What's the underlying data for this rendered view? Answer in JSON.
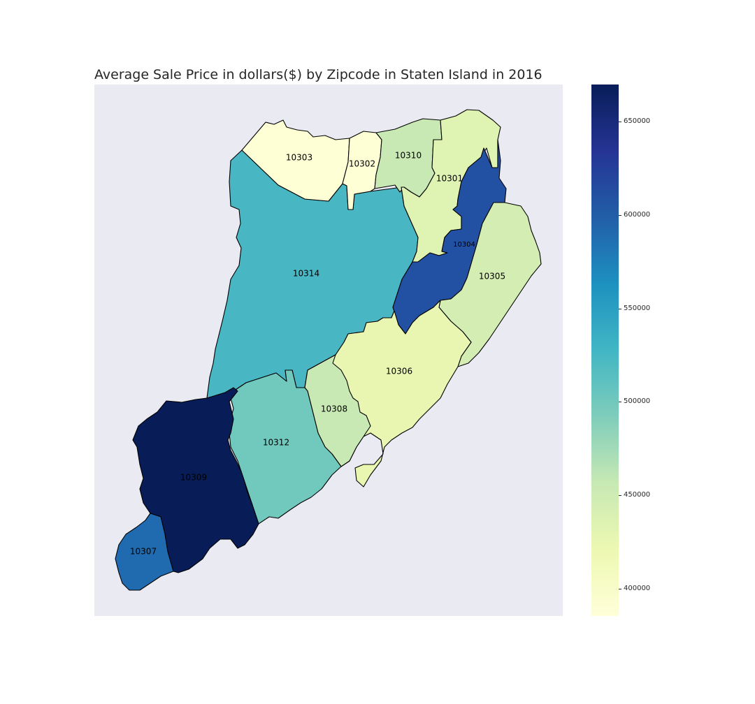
{
  "title": "Average Sale Price in dollars($) by Zipcode in Staten Island in 2016",
  "colormap": {
    "name": "YlGnBu",
    "stops": [
      "#ffffd9",
      "#edf8b1",
      "#c7e9b4",
      "#7fcdbb",
      "#41b6c4",
      "#1d91c0",
      "#225ea8",
      "#253494",
      "#081d58"
    ],
    "ticks": [
      "650000",
      "600000",
      "550000",
      "500000",
      "450000",
      "400000"
    ]
  },
  "regions": [
    {
      "zip": "10303",
      "color": "#ffffd6"
    },
    {
      "zip": "10302",
      "color": "#ffffd6"
    },
    {
      "zip": "10310",
      "color": "#c9e9b4"
    },
    {
      "zip": "10301",
      "color": "#dff3b2"
    },
    {
      "zip": "10304",
      "color": "#2251a3"
    },
    {
      "zip": "10314",
      "color": "#49b7c3"
    },
    {
      "zip": "10305",
      "color": "#d3edb3"
    },
    {
      "zip": "10306",
      "color": "#e8f6b1"
    },
    {
      "zip": "10308",
      "color": "#c9e9b4"
    },
    {
      "zip": "10312",
      "color": "#71c8bd"
    },
    {
      "zip": "10309",
      "color": "#081d58"
    },
    {
      "zip": "10307",
      "color": "#206bb0"
    }
  ]
}
